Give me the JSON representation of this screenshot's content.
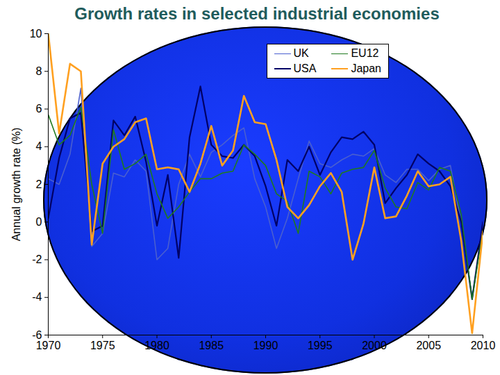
{
  "chart_data": {
    "type": "line",
    "title": "Growth rates in selected industrial economies",
    "y_label": "Annual growth rate (%)",
    "x": [
      1970,
      1971,
      1972,
      1973,
      1974,
      1975,
      1976,
      1977,
      1978,
      1979,
      1980,
      1981,
      1982,
      1983,
      1984,
      1985,
      1986,
      1987,
      1988,
      1989,
      1990,
      1991,
      1992,
      1993,
      1994,
      1995,
      1996,
      1997,
      1998,
      1999,
      2000,
      2001,
      2002,
      2003,
      2004,
      2005,
      2006,
      2007,
      2008,
      2009,
      2010
    ],
    "series": [
      {
        "name": "UK",
        "color": "#4a5fd0",
        "values": [
          2.3,
          2.0,
          3.6,
          7.1,
          -1.3,
          -0.6,
          2.6,
          2.4,
          3.3,
          2.7,
          -2.0,
          -1.4,
          2.0,
          3.6,
          2.4,
          3.7,
          4.1,
          4.6,
          5.0,
          2.3,
          0.8,
          -1.4,
          0.2,
          2.3,
          4.3,
          3.1,
          2.9,
          3.3,
          3.6,
          3.5,
          3.9,
          2.5,
          2.1,
          2.8,
          2.8,
          2.2,
          2.8,
          3.0,
          -0.1,
          -4.0,
          -0.3
        ]
      },
      {
        "name": "USA",
        "color": "#000066",
        "values": [
          0.2,
          3.4,
          5.5,
          5.8,
          -0.5,
          -0.2,
          5.4,
          4.6,
          5.6,
          3.2,
          -0.2,
          2.5,
          -1.9,
          4.5,
          7.2,
          4.1,
          3.5,
          3.4,
          4.1,
          3.5,
          1.9,
          -0.2,
          3.3,
          2.7,
          4.0,
          2.5,
          3.7,
          4.5,
          4.4,
          4.8,
          4.1,
          1.0,
          1.8,
          2.5,
          3.6,
          3.1,
          2.7,
          1.9,
          0.0,
          -4.1,
          0.0
        ]
      },
      {
        "name": "EU12",
        "color": "#1f7a1f",
        "values": [
          5.7,
          4.1,
          4.6,
          6.1,
          2.0,
          -0.6,
          4.9,
          2.8,
          3.1,
          3.6,
          1.5,
          0.2,
          0.8,
          1.6,
          2.3,
          2.3,
          2.6,
          2.7,
          4.1,
          3.6,
          3.0,
          1.5,
          1.1,
          -0.6,
          2.7,
          2.4,
          1.5,
          2.6,
          2.8,
          2.9,
          3.8,
          1.8,
          0.8,
          0.7,
          2.1,
          1.7,
          2.9,
          2.7,
          0.4,
          -4.1,
          -0.4
        ]
      },
      {
        "name": "Japan",
        "color": "#ffa020",
        "values": [
          10.0,
          4.7,
          8.4,
          8.0,
          -1.2,
          3.1,
          4.0,
          4.4,
          5.3,
          5.5,
          2.8,
          2.9,
          2.8,
          1.6,
          3.1,
          5.1,
          3.0,
          3.8,
          6.7,
          5.3,
          5.2,
          3.3,
          0.8,
          0.2,
          0.9,
          1.9,
          2.6,
          1.6,
          -2.0,
          -0.1,
          2.9,
          0.2,
          0.3,
          1.4,
          2.7,
          1.9,
          2.0,
          2.4,
          -1.0,
          -5.9,
          -0.5
        ]
      }
    ],
    "xlim": [
      1970,
      2010
    ],
    "xticks": [
      1970,
      1975,
      1980,
      1985,
      1990,
      1995,
      2000,
      2005,
      2010
    ],
    "ylim": [
      -6,
      10
    ],
    "yticks": [
      -6,
      -4,
      -2,
      0,
      2,
      4,
      6,
      8,
      10
    ],
    "legend": "top-right",
    "grid": false
  }
}
